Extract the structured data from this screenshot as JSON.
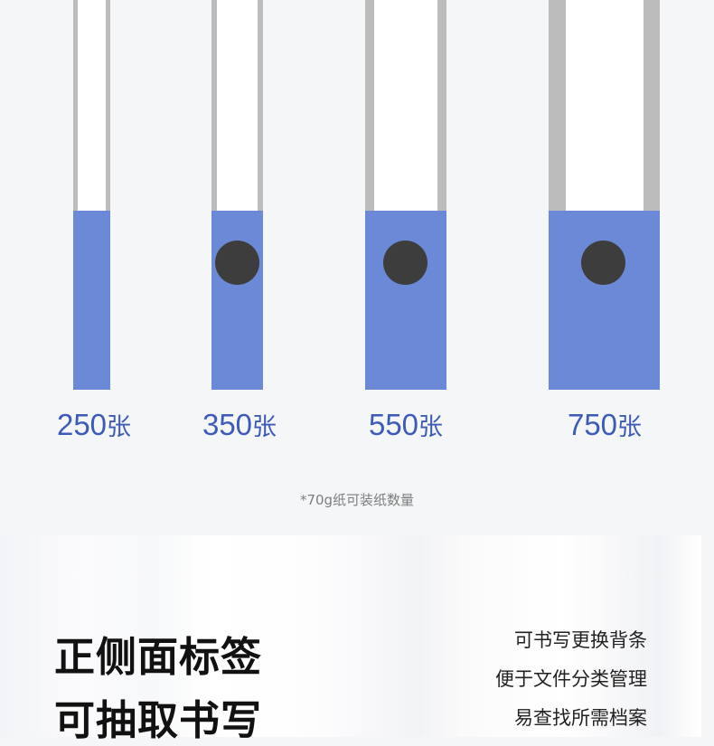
{
  "colors": {
    "spine": "#6b89d6",
    "label": "#3f5bb8",
    "ring": "#bcbcbc",
    "hole": "#3d3d3d"
  },
  "binders": [
    {
      "count": "250",
      "unit": "张",
      "has_hole": false
    },
    {
      "count": "350",
      "unit": "张",
      "has_hole": true
    },
    {
      "count": "550",
      "unit": "张",
      "has_hole": true
    },
    {
      "count": "750",
      "unit": "张",
      "has_hole": true
    }
  ],
  "footnote": "*70g纸可装纸数量",
  "feature": {
    "title_lines": [
      "正侧面标签",
      "可抽取书写"
    ],
    "desc_lines": [
      "可书写更换背条",
      "便于文件分类管理",
      "易查找所需档案"
    ]
  }
}
